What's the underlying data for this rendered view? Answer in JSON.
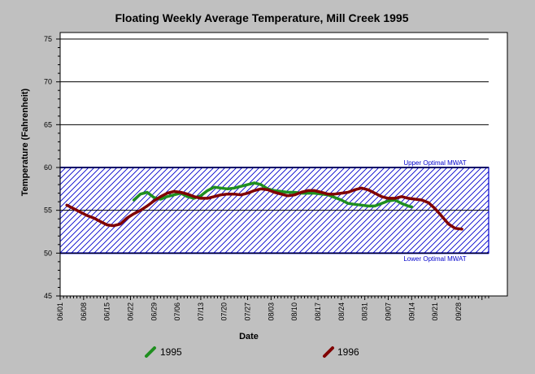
{
  "chart_data": {
    "type": "line",
    "title": "Floating Weekly Average Temperature, Mill Creek 1995",
    "xlabel": "Date",
    "ylabel": "Temperature (Fahrenheit)",
    "ylim": [
      45,
      75
    ],
    "y_ticks": [
      45,
      50,
      55,
      60,
      65,
      70,
      75
    ],
    "x_range": [
      "06/01",
      "10/07"
    ],
    "x_ticks": [
      "06/01",
      "06/08",
      "06/15",
      "06/22",
      "06/29",
      "07/06",
      "07/13",
      "07/20",
      "07/27",
      "08/03",
      "08/10",
      "08/17",
      "08/24",
      "08/31",
      "09/07",
      "09/14",
      "09/21",
      "09/28"
    ],
    "grid": "horizontal major lines at 50, 55, 60, 65, 70, 75",
    "band": {
      "range": [
        50,
        60
      ],
      "upper_label": "Upper Optimal MWAT",
      "lower_label": "Lower Optimal MWAT",
      "color": "#0000cc"
    },
    "legend_position": "bottom",
    "series": [
      {
        "name": "1995",
        "color": "#1f8f1f",
        "points": [
          [
            "06/23",
            56.2
          ],
          [
            "06/25",
            56.9
          ],
          [
            "06/27",
            57.1
          ],
          [
            "06/29",
            56.5
          ],
          [
            "07/01",
            56.3
          ],
          [
            "07/03",
            56.6
          ],
          [
            "07/05",
            56.8
          ],
          [
            "07/07",
            57.0
          ],
          [
            "07/09",
            56.6
          ],
          [
            "07/11",
            56.4
          ],
          [
            "07/13",
            56.7
          ],
          [
            "07/15",
            57.3
          ],
          [
            "07/17",
            57.7
          ],
          [
            "07/19",
            57.6
          ],
          [
            "07/21",
            57.5
          ],
          [
            "07/23",
            57.6
          ],
          [
            "07/25",
            57.8
          ],
          [
            "07/27",
            58.0
          ],
          [
            "07/29",
            58.2
          ],
          [
            "07/31",
            58.0
          ],
          [
            "08/02",
            57.5
          ],
          [
            "08/04",
            57.3
          ],
          [
            "08/06",
            57.2
          ],
          [
            "08/08",
            57.1
          ],
          [
            "08/10",
            57.1
          ],
          [
            "08/12",
            57.0
          ],
          [
            "08/14",
            57.0
          ],
          [
            "08/16",
            57.0
          ],
          [
            "08/18",
            56.9
          ],
          [
            "08/20",
            56.8
          ],
          [
            "08/22",
            56.5
          ],
          [
            "08/24",
            56.2
          ],
          [
            "08/26",
            55.8
          ],
          [
            "08/28",
            55.7
          ],
          [
            "08/30",
            55.6
          ],
          [
            "09/01",
            55.5
          ],
          [
            "09/03",
            55.5
          ],
          [
            "09/05",
            55.8
          ],
          [
            "09/07",
            56.1
          ],
          [
            "09/09",
            56.2
          ],
          [
            "09/11",
            55.8
          ],
          [
            "09/13",
            55.5
          ],
          [
            "09/14",
            55.4
          ]
        ]
      },
      {
        "name": "1996",
        "color": "#800000",
        "points": [
          [
            "06/03",
            55.6
          ],
          [
            "06/05",
            55.2
          ],
          [
            "06/07",
            54.8
          ],
          [
            "06/09",
            54.4
          ],
          [
            "06/11",
            54.1
          ],
          [
            "06/13",
            53.7
          ],
          [
            "06/15",
            53.3
          ],
          [
            "06/17",
            53.2
          ],
          [
            "06/19",
            53.4
          ],
          [
            "06/21",
            54.1
          ],
          [
            "06/23",
            54.6
          ],
          [
            "06/25",
            55.0
          ],
          [
            "06/27",
            55.5
          ],
          [
            "06/29",
            56.1
          ],
          [
            "07/01",
            56.6
          ],
          [
            "07/03",
            57.0
          ],
          [
            "07/05",
            57.2
          ],
          [
            "07/07",
            57.1
          ],
          [
            "07/09",
            56.9
          ],
          [
            "07/11",
            56.6
          ],
          [
            "07/13",
            56.4
          ],
          [
            "07/15",
            56.4
          ],
          [
            "07/17",
            56.6
          ],
          [
            "07/19",
            56.8
          ],
          [
            "07/21",
            56.9
          ],
          [
            "07/23",
            56.9
          ],
          [
            "07/25",
            56.8
          ],
          [
            "07/27",
            57.0
          ],
          [
            "07/29",
            57.3
          ],
          [
            "07/31",
            57.5
          ],
          [
            "08/02",
            57.4
          ],
          [
            "08/04",
            57.1
          ],
          [
            "08/06",
            56.9
          ],
          [
            "08/08",
            56.7
          ],
          [
            "08/10",
            56.8
          ],
          [
            "08/12",
            57.1
          ],
          [
            "08/14",
            57.3
          ],
          [
            "08/16",
            57.3
          ],
          [
            "08/18",
            57.1
          ],
          [
            "08/20",
            56.9
          ],
          [
            "08/22",
            56.9
          ],
          [
            "08/24",
            57.0
          ],
          [
            "08/26",
            57.1
          ],
          [
            "08/28",
            57.4
          ],
          [
            "08/30",
            57.6
          ],
          [
            "09/01",
            57.4
          ],
          [
            "09/03",
            57.0
          ],
          [
            "09/05",
            56.6
          ],
          [
            "09/07",
            56.4
          ],
          [
            "09/09",
            56.4
          ],
          [
            "09/11",
            56.6
          ],
          [
            "09/13",
            56.4
          ],
          [
            "09/15",
            56.3
          ],
          [
            "09/17",
            56.2
          ],
          [
            "09/19",
            55.9
          ],
          [
            "09/21",
            55.2
          ],
          [
            "09/23",
            54.3
          ],
          [
            "09/25",
            53.4
          ],
          [
            "09/27",
            52.9
          ],
          [
            "09/29",
            52.8
          ]
        ]
      }
    ]
  }
}
